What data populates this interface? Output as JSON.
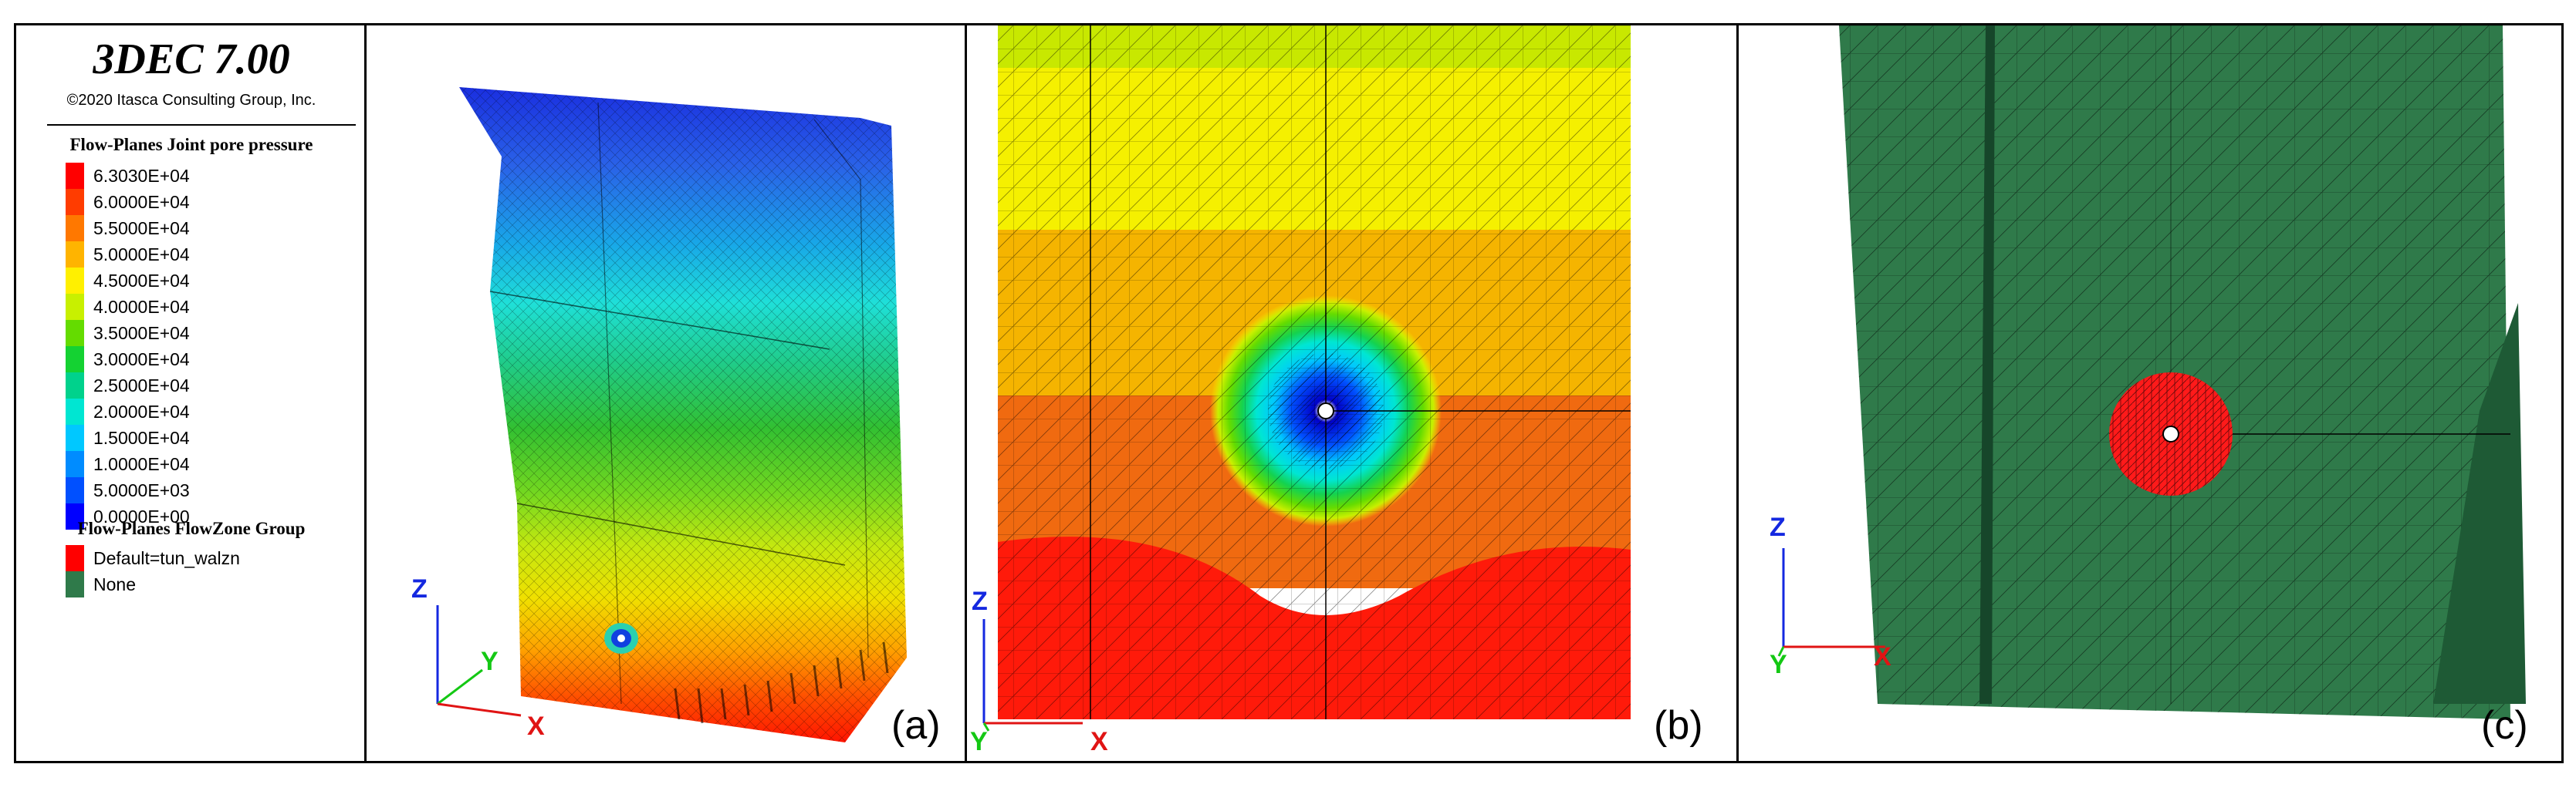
{
  "legend": {
    "title": "3DEC 7.00",
    "copyright": "©2020 Itasca Consulting Group, Inc.",
    "pressure_title": "Flow-Planes Joint pore pressure",
    "pressure_items": [
      {
        "label": "6.3030E+04",
        "color": "#ff0000"
      },
      {
        "label": "6.0000E+04",
        "color": "#ff3c00"
      },
      {
        "label": "5.5000E+04",
        "color": "#ff7800"
      },
      {
        "label": "5.0000E+04",
        "color": "#ffb400"
      },
      {
        "label": "4.5000E+04",
        "color": "#fff000"
      },
      {
        "label": "4.0000E+04",
        "color": "#c8f000"
      },
      {
        "label": "3.5000E+04",
        "color": "#64dc00"
      },
      {
        "label": "3.0000E+04",
        "color": "#14d232"
      },
      {
        "label": "2.5000E+04",
        "color": "#00d28c"
      },
      {
        "label": "2.0000E+04",
        "color": "#00e6d2"
      },
      {
        "label": "1.5000E+04",
        "color": "#00c8ff"
      },
      {
        "label": "1.0000E+04",
        "color": "#008cff"
      },
      {
        "label": "5.0000E+03",
        "color": "#0050ff"
      },
      {
        "label": "0.0000E+00",
        "color": "#0000ff"
      }
    ],
    "group_title": "Flow-Planes FlowZone Group",
    "group_items": [
      {
        "label": "Default=tun_walzn",
        "color": "#ff0000"
      },
      {
        "label": "None",
        "color": "#2f7a4a"
      }
    ]
  },
  "panels": [
    {
      "label": "(a)",
      "axes": [
        "Z",
        "Y",
        "X"
      ]
    },
    {
      "label": "(b)",
      "axes": [
        "Z",
        "Y",
        "X"
      ]
    },
    {
      "label": "(c)",
      "axes": [
        "Z",
        "Y",
        "X"
      ]
    }
  ]
}
